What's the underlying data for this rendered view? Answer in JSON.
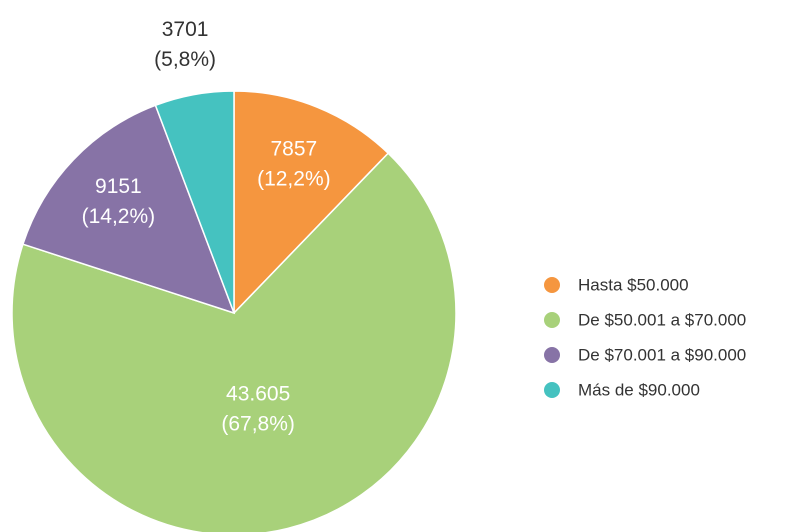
{
  "chart_data": {
    "type": "pie",
    "categories": [
      "Hasta $50.000",
      "De $50.001 a $70.000",
      "De $70.001 a $90.000",
      "Más de $90.000"
    ],
    "values": [
      7857,
      43605,
      9151,
      3701
    ],
    "value_labels": [
      "7857",
      "43.605",
      "9151",
      "3701"
    ],
    "percent_labels": [
      "(12,2%)",
      "(67,8%)",
      "(14,2%)",
      "(5,8%)"
    ],
    "colors": [
      "#f5963f",
      "#a8d17a",
      "#8773a6",
      "#45c2c0"
    ],
    "legend": "right"
  }
}
